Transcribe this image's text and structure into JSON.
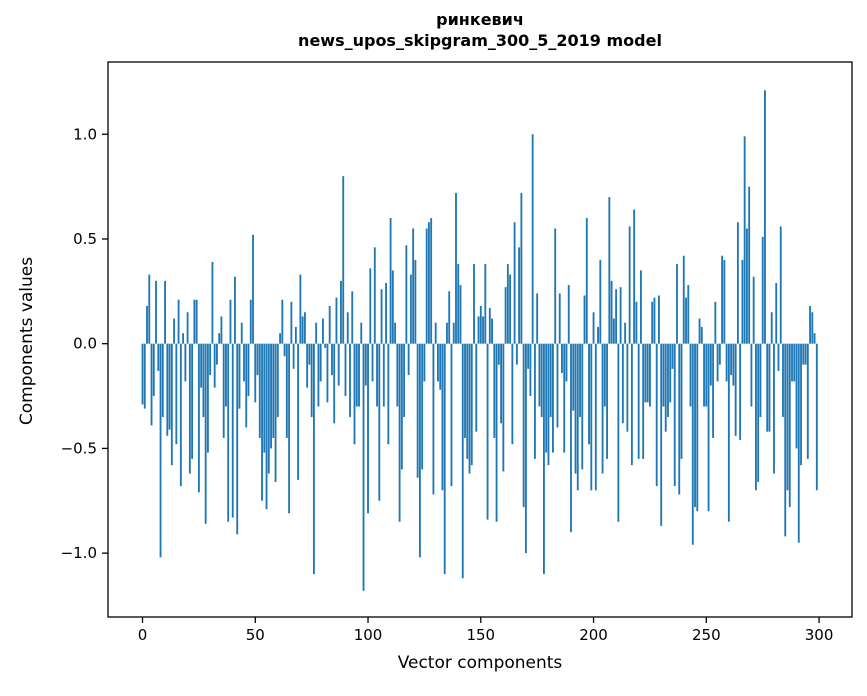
{
  "chart_data": {
    "type": "bar",
    "title_line1": "ринкевич",
    "title_line2": "news_upos_skipgram_300_5_2019 model",
    "xlabel": "Vector components",
    "ylabel": "Components values",
    "bar_color": "#1f77b4",
    "spine_color": "#000000",
    "text_color": "#000000",
    "n_components": 300,
    "xlim": [
      -15.3,
      314.6
    ],
    "ylim": [
      -1.305,
      1.345
    ],
    "xtick_values": [
      0,
      50,
      100,
      150,
      200,
      250,
      300
    ],
    "xtick_labels": [
      "0",
      "50",
      "100",
      "150",
      "200",
      "250",
      "300"
    ],
    "ytick_values": [
      1.0,
      0.5,
      0.0,
      -0.5,
      -1.0
    ],
    "ytick_labels": [
      "1.0",
      "0.5",
      "0.0",
      "−0.5",
      "−1.0"
    ],
    "legend": "none",
    "grid": false,
    "values": [
      -0.29,
      -0.31,
      0.18,
      0.33,
      -0.39,
      -0.25,
      0.3,
      -0.13,
      -1.02,
      -0.35,
      0.3,
      -0.44,
      -0.41,
      -0.58,
      0.12,
      -0.48,
      0.21,
      -0.68,
      0.05,
      -0.18,
      0.15,
      -0.62,
      -0.55,
      0.21,
      0.21,
      -0.71,
      -0.21,
      -0.35,
      -0.86,
      -0.52,
      -0.15,
      0.39,
      -0.21,
      -0.1,
      0.05,
      0.13,
      -0.45,
      -0.3,
      -0.85,
      0.21,
      -0.83,
      0.32,
      -0.91,
      -0.31,
      0.1,
      -0.18,
      -0.4,
      -0.25,
      0.21,
      0.52,
      -0.28,
      -0.15,
      -0.45,
      -0.75,
      -0.52,
      -0.79,
      -0.62,
      -0.5,
      -0.45,
      -0.66,
      -0.35,
      0.05,
      0.21,
      -0.06,
      -0.45,
      -0.81,
      0.2,
      -0.12,
      0.08,
      -0.65,
      0.33,
      0.13,
      0.15,
      -0.21,
      -0.1,
      -0.35,
      -1.1,
      0.1,
      -0.3,
      -0.18,
      0.12,
      -0.02,
      -0.28,
      0.18,
      -0.15,
      -0.38,
      0.22,
      -0.2,
      0.3,
      0.8,
      -0.25,
      0.15,
      -0.35,
      0.25,
      -0.48,
      -0.3,
      -0.3,
      0.1,
      -1.18,
      -0.2,
      -0.81,
      0.36,
      -0.18,
      0.46,
      -0.3,
      -0.75,
      0.26,
      -0.3,
      0.29,
      -0.48,
      0.6,
      0.35,
      0.1,
      -0.3,
      -0.85,
      -0.6,
      -0.35,
      0.47,
      -0.15,
      0.33,
      0.55,
      0.4,
      -0.64,
      -1.02,
      -0.6,
      -0.18,
      0.55,
      0.58,
      0.6,
      -0.72,
      0.1,
      -0.18,
      -0.22,
      -0.7,
      -1.1,
      0.1,
      0.25,
      -0.68,
      0.1,
      0.72,
      0.38,
      0.28,
      -1.12,
      -0.45,
      -0.55,
      -0.62,
      -0.58,
      0.38,
      -0.42,
      0.13,
      0.18,
      0.13,
      0.38,
      -0.84,
      0.17,
      0.12,
      -0.45,
      -0.85,
      -0.1,
      -0.38,
      -0.61,
      0.27,
      0.38,
      0.33,
      -0.48,
      0.58,
      -0.1,
      0.46,
      0.72,
      -0.78,
      -1.0,
      -0.12,
      -0.25,
      1.0,
      -0.55,
      0.24,
      -0.3,
      -0.35,
      -1.1,
      -0.52,
      -0.58,
      -0.35,
      -0.52,
      0.55,
      -0.4,
      0.24,
      -0.14,
      -0.52,
      -0.18,
      0.28,
      -0.9,
      -0.32,
      -0.62,
      -0.7,
      -0.35,
      -0.6,
      0.23,
      0.6,
      -0.48,
      -0.7,
      0.15,
      -0.7,
      0.08,
      0.4,
      -0.62,
      -0.3,
      -0.55,
      0.7,
      0.3,
      0.12,
      0.26,
      -0.85,
      0.27,
      -0.38,
      0.1,
      -0.42,
      0.56,
      -0.58,
      0.64,
      0.2,
      -0.55,
      0.35,
      -0.55,
      -0.28,
      -0.28,
      -0.3,
      0.2,
      0.22,
      -0.68,
      0.23,
      -0.87,
      -0.3,
      -0.42,
      -0.35,
      -0.28,
      -0.12,
      -0.68,
      0.38,
      -0.72,
      -0.55,
      0.42,
      0.22,
      0.28,
      -0.3,
      -0.96,
      -0.78,
      -0.8,
      0.12,
      0.08,
      -0.3,
      -0.3,
      -0.8,
      -0.2,
      -0.45,
      0.2,
      -0.18,
      -0.1,
      0.42,
      0.4,
      -0.18,
      -0.85,
      -0.15,
      -0.2,
      -0.44,
      0.58,
      -0.46,
      0.4,
      0.99,
      0.55,
      0.75,
      -0.3,
      0.32,
      -0.7,
      -0.66,
      -0.35,
      0.51,
      1.21,
      -0.42,
      -0.42,
      0.15,
      -0.62,
      0.29,
      -0.13,
      0.56,
      -0.35,
      -0.92,
      -0.7,
      -0.78,
      -0.18,
      -0.18,
      -0.5,
      -0.95,
      -0.58,
      -0.1,
      -0.1,
      -0.55,
      0.18,
      0.15,
      0.05,
      -0.7
    ]
  }
}
